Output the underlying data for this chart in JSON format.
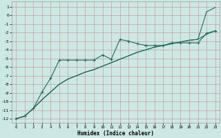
{
  "xlabel": "Humidex (Indice chaleur)",
  "bg_color": "#cce8e4",
  "grid_color": "#cc8888",
  "line_color": "#1a6b5a",
  "xlim_min": -0.5,
  "xlim_max": 23.5,
  "ylim_min": -12.5,
  "ylim_max": 1.6,
  "xticks": [
    0,
    1,
    2,
    3,
    4,
    5,
    6,
    7,
    8,
    9,
    10,
    11,
    12,
    13,
    14,
    15,
    16,
    17,
    18,
    19,
    20,
    21,
    22,
    23
  ],
  "yticks": [
    1,
    0,
    -1,
    -2,
    -3,
    -4,
    -5,
    -6,
    -7,
    -8,
    -9,
    -10,
    -11,
    -12
  ],
  "line_marker_x": [
    0,
    1,
    2,
    3,
    4,
    5,
    6,
    7,
    8,
    9,
    10,
    11,
    12,
    13,
    14,
    15,
    16,
    17,
    18,
    19,
    20,
    21,
    22,
    23
  ],
  "line_marker_y": [
    -12.0,
    -11.7,
    -10.8,
    -8.9,
    -7.3,
    -5.2,
    -5.2,
    -5.2,
    -5.2,
    -5.2,
    -4.6,
    -5.1,
    -2.8,
    -3.0,
    -3.3,
    -3.5,
    -3.5,
    -3.5,
    -3.2,
    -3.2,
    -3.2,
    -3.2,
    -2.1,
    -1.8
  ],
  "line_smooth_lo_x": [
    0,
    1,
    2,
    3,
    4,
    5,
    6,
    7,
    8,
    9,
    10,
    11,
    12,
    13,
    14,
    15,
    16,
    17,
    18,
    19,
    20,
    21,
    22,
    23
  ],
  "line_smooth_lo_y": [
    -12.0,
    -11.7,
    -10.8,
    -9.8,
    -8.9,
    -8.0,
    -7.4,
    -7.0,
    -6.6,
    -6.3,
    -5.9,
    -5.5,
    -5.1,
    -4.7,
    -4.3,
    -4.0,
    -3.7,
    -3.5,
    -3.3,
    -3.1,
    -2.9,
    -2.8,
    -2.2,
    -1.8
  ],
  "line_smooth_hi_x": [
    0,
    1,
    2,
    3,
    4,
    5,
    6,
    7,
    8,
    9,
    10,
    11,
    12,
    13,
    14,
    15,
    16,
    17,
    18,
    19,
    20,
    21,
    22,
    23
  ],
  "line_smooth_hi_y": [
    -12.0,
    -11.7,
    -10.8,
    -9.8,
    -8.9,
    -8.0,
    -7.4,
    -7.0,
    -6.6,
    -6.3,
    -5.9,
    -5.5,
    -5.1,
    -4.7,
    -4.3,
    -4.0,
    -3.7,
    -3.5,
    -3.3,
    -3.1,
    -2.9,
    -2.8,
    0.4,
    0.9
  ]
}
